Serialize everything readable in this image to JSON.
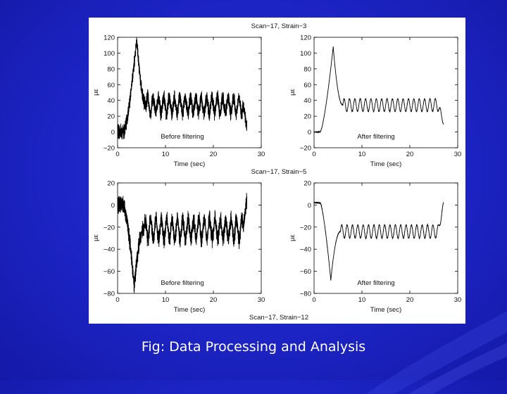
{
  "caption": "Fig: Data Processing and Analysis",
  "colors": {
    "background": "#1b22c0",
    "panel": "#ffffff",
    "trace": "#000000",
    "caption_text": "#ffffff"
  },
  "chart_data": [
    {
      "type": "line",
      "title": "Scan−17, Strain−3",
      "annotation": "Before filtering",
      "xlabel": "Time (sec)",
      "ylabel": "µε",
      "xlim": [
        0,
        30
      ],
      "ylim": [
        -20,
        120
      ],
      "xticks": [
        "0",
        "10",
        "20",
        "30"
      ],
      "yticks": [
        "−20",
        "0",
        "20",
        "40",
        "60",
        "80",
        "100",
        "120"
      ],
      "signal": {
        "baseline": 0,
        "peak": 118,
        "peak_time": 4,
        "steady_mean": 34,
        "oscillation_amplitude": 10,
        "oscillation_period": 1.12,
        "end_time": 27,
        "end_value": 8,
        "noise": 6
      }
    },
    {
      "type": "line",
      "title": "",
      "annotation": "After filtering",
      "xlabel": "Time (sec)",
      "ylabel": "µε",
      "xlim": [
        0,
        30
      ],
      "ylim": [
        -20,
        120
      ],
      "xticks": [
        "0",
        "10",
        "20",
        "30"
      ],
      "yticks": [
        "−20",
        "0",
        "20",
        "40",
        "60",
        "80",
        "100",
        "120"
      ],
      "signal": {
        "baseline": 0,
        "peak": 108,
        "peak_time": 4,
        "steady_mean": 34,
        "oscillation_amplitude": 8,
        "oscillation_period": 1.12,
        "end_time": 27,
        "end_value": 10,
        "noise": 0.4
      }
    },
    {
      "type": "line",
      "title": "Scan−17, Strain−5",
      "annotation": "Before filtering",
      "xlabel": "Time (sec)",
      "ylabel": "µε",
      "xlim": [
        0,
        30
      ],
      "ylim": [
        -80,
        20
      ],
      "xticks": [
        "0",
        "10",
        "20",
        "30"
      ],
      "yticks": [
        "−80",
        "−60",
        "−40",
        "−20",
        "0",
        "20"
      ],
      "signal": {
        "baseline": 0,
        "peak": -74,
        "peak_time": 3.5,
        "steady_mean": -22,
        "oscillation_amplitude": 9,
        "oscillation_period": 1.12,
        "end_time": 27,
        "end_value": 4,
        "noise": 5
      }
    },
    {
      "type": "line",
      "title": "",
      "annotation": "After filtering",
      "xlabel": "Time (sec)",
      "ylabel": "µε",
      "xlim": [
        0,
        30
      ],
      "ylim": [
        -80,
        20
      ],
      "xticks": [
        "0",
        "10",
        "20",
        "30"
      ],
      "yticks": [
        "−80",
        "−60",
        "−40",
        "−20",
        "0",
        "20"
      ],
      "signal": {
        "baseline": 2,
        "peak": -68,
        "peak_time": 3.5,
        "steady_mean": -24,
        "oscillation_amplitude": 6,
        "oscillation_period": 1.12,
        "end_time": 27,
        "end_value": 2,
        "noise": 0.4
      }
    }
  ],
  "footer_title": "Scan−17, Strain−12"
}
